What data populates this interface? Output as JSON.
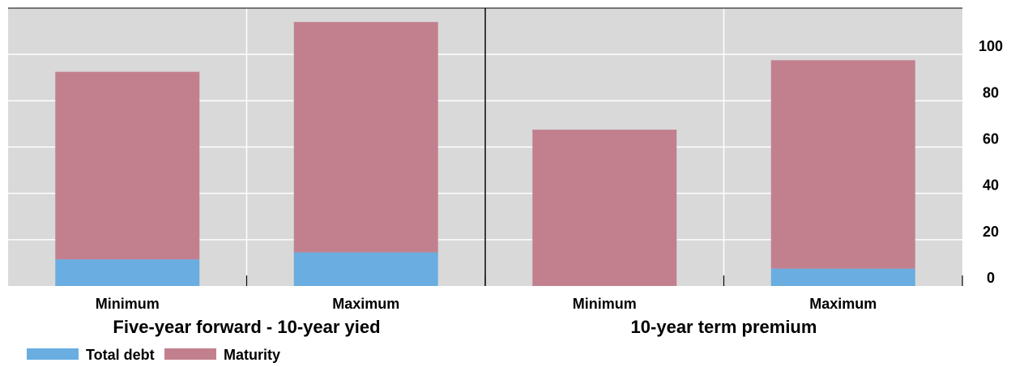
{
  "chart_data": {
    "type": "bar",
    "stacked": true,
    "groups": [
      {
        "label": "Five-year forward - 10-year yied",
        "categories": [
          "Minimum",
          "Maximum"
        ]
      },
      {
        "label": "10-year term premium",
        "categories": [
          "Minimum",
          "Maximum"
        ]
      }
    ],
    "categories": [
      "Minimum",
      "Maximum",
      "Minimum",
      "Maximum"
    ],
    "series": [
      {
        "name": "Total debt",
        "color": "#6aade0",
        "values": [
          11.5,
          14.5,
          0,
          7.5
        ]
      },
      {
        "name": "Maturity",
        "color": "#c2808f",
        "values": [
          81,
          99.5,
          67.5,
          90
        ]
      }
    ],
    "ylim": [
      0,
      120
    ],
    "yticks": [
      0,
      20,
      40,
      60,
      80,
      100
    ],
    "y_axis_side": "right",
    "grid": true,
    "background": "#d9d9d9",
    "legend_position": "bottom-left",
    "title": "",
    "xlabel": "",
    "ylabel": ""
  }
}
